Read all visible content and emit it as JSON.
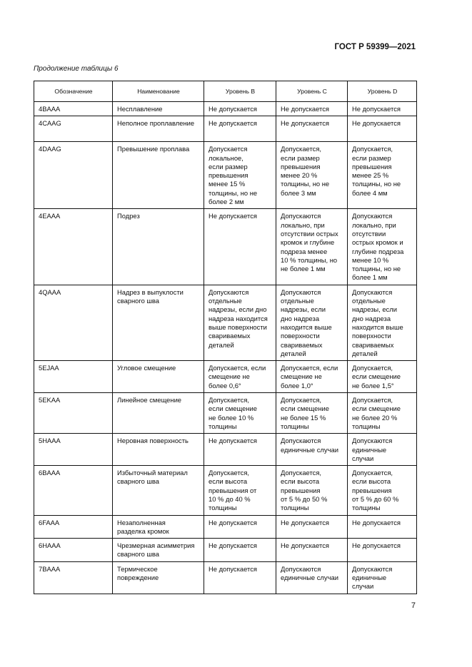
{
  "header": {
    "doc_code": "ГОСТ Р 59399—2021"
  },
  "caption": "Продолжение таблицы 6",
  "table": {
    "columns": [
      "Обозначение",
      "Наименование",
      "Уровень B",
      "Уровень C",
      "Уровень D"
    ],
    "rows": [
      [
        "4BAAA",
        "Несплавление",
        "Не допускается",
        "Не допускается",
        "Не допускается"
      ],
      [
        "4CAAG",
        "Неполное проплавление",
        "Не допускается",
        "Не допускается",
        "Не допускается"
      ],
      [
        "4DAAG",
        "Превышение проплава",
        "Допускается\nлокальное,\nесли размер\nпревышения\nменее 15 %\nтолщины, но не\nболее 2 мм",
        "Допускается,\nесли размер\nпревышения\nменее 20 %\nтолщины, но не\nболее 3 мм",
        "Допускается,\nесли размер\nпревышения\nменее 25 %\nтолщины, но не\nболее 4 мм"
      ],
      [
        "4EAAA",
        "Подрез",
        "Не допускается",
        "Допускаются\nлокально, при\nотсутствии острых\nкромок и глубине\nподреза менее\n10 % толщины, но\nне более 1 мм",
        "Допускаются\nлокально, при\nотсутствии\nострых кромок и\nглубине подреза\nменее 10 %\nтолщины, но не\nболее 1 мм"
      ],
      [
        "4QAAA",
        "Надрез в выпуклости\nсварного шва",
        "Допускаются\nотдельные\nнадрезы, если дно\nнадреза находится\nвыше поверхности\nсвариваемых\nдеталей",
        "Допускаются\nотдельные\nнадрезы, если\nдно надреза\nнаходится выше\nповерхности\nсвариваемых\nдеталей",
        "Допускаются\nотдельные\nнадрезы, если\nдно надреза\nнаходится выше\nповерхности\nсвариваемых\nдеталей"
      ],
      [
        "5EJAA",
        "Угловое смещение",
        "Допускается, если\nсмещение не\nболее 0,6°",
        "Допускается, если\nсмещение не\nболее 1,0°",
        "Допускается,\nесли смещение\nне более 1,5°"
      ],
      [
        "5EKAA",
        "Линейное смещение",
        "Допускается,\nесли смещение\nне более 10 %\nтолщины",
        "Допускается,\nесли смещение\nне более 15 %\nтолщины",
        "Допускается,\nесли смещение\nне более 20 %\nтолщины"
      ],
      [
        "5HAAA",
        "Неровная поверхность",
        "Не допускается",
        "Допускаются\nединичные случаи",
        "Допускаются\nединичные\nслучаи"
      ],
      [
        "6BAAA",
        "Избыточный материал\nсварного шва",
        "Допускается,\nесли высота\nпревышения от\n10 % до 40 %\nтолщины",
        "Допускается,\nесли высота\nпревышения\nот 5 % до 50 %\nтолщины",
        "Допускается,\nесли высота\nпревышения\nот 5 % до 60 %\nтолщины"
      ],
      [
        "6FAAA",
        "Незаполненная\nразделка кромок",
        "Не допускается",
        "Не допускается",
        "Не допускается"
      ],
      [
        "6HAAA",
        "Чрезмерная асимметрия\nсварного шва",
        "Не допускается",
        "Не допускается",
        "Не допускается"
      ],
      [
        "7BAAA",
        "Термическое\nповреждение",
        "Не допускается",
        "Допускаются\nединичные случаи",
        "Допускаются\nединичные\nслучаи"
      ]
    ]
  },
  "page_number": "7"
}
